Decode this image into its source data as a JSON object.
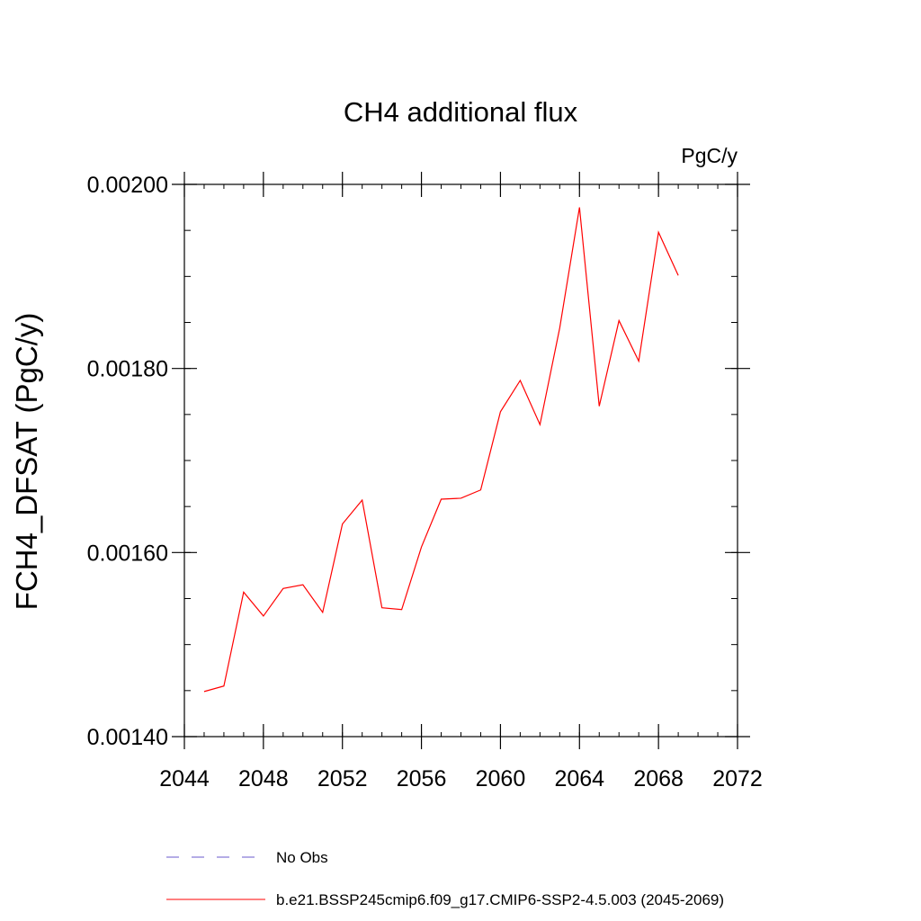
{
  "chart_data": {
    "type": "line",
    "title": "CH4 additional flux",
    "units_label": "PgC/y",
    "ylabel": "FCH4_DFSAT  (PgC/y)",
    "xlabel": "",
    "xlim": [
      2044,
      2072
    ],
    "ylim": [
      0.0014,
      0.002
    ],
    "x_ticks": [
      2044,
      2048,
      2052,
      2056,
      2060,
      2064,
      2068,
      2072
    ],
    "x_tick_labels": [
      "2044",
      "2048",
      "2052",
      "2056",
      "2060",
      "2064",
      "2068",
      "2072"
    ],
    "y_ticks": [
      0.0014,
      0.0016,
      0.0018,
      0.002
    ],
    "y_tick_labels": [
      "0.00140",
      "0.00160",
      "0.00180",
      "0.00200"
    ],
    "y_minor_step": 5e-05,
    "x_minor_step": 1,
    "grid": false,
    "legend_position": "bottom",
    "series": [
      {
        "name": "b.e21.BSSP245cmip6.f09_g17.CMIP6-SSP2-4.5.003 (2045-2069)",
        "color": "#ff0000",
        "dash": "solid",
        "x": [
          2045,
          2046,
          2047,
          2048,
          2049,
          2050,
          2051,
          2052,
          2053,
          2054,
          2055,
          2056,
          2057,
          2058,
          2059,
          2060,
          2061,
          2062,
          2063,
          2064,
          2065,
          2066,
          2067,
          2068,
          2069
        ],
        "values": [
          0.001449,
          0.001455,
          0.001557,
          0.001531,
          0.001561,
          0.001565,
          0.001535,
          0.001631,
          0.001657,
          0.00154,
          0.001538,
          0.001606,
          0.001658,
          0.001659,
          0.001668,
          0.001753,
          0.001787,
          0.001739,
          0.001844,
          0.001975,
          0.001759,
          0.001852,
          0.001808,
          0.001948,
          0.001901
        ]
      }
    ],
    "legend": [
      {
        "label": "No Obs",
        "color": "#6a5acd",
        "dash": "dashed"
      },
      {
        "label": "b.e21.BSSP245cmip6.f09_g17.CMIP6-SSP2-4.5.003 (2045-2069)",
        "color": "#ff0000",
        "dash": "solid"
      }
    ]
  }
}
